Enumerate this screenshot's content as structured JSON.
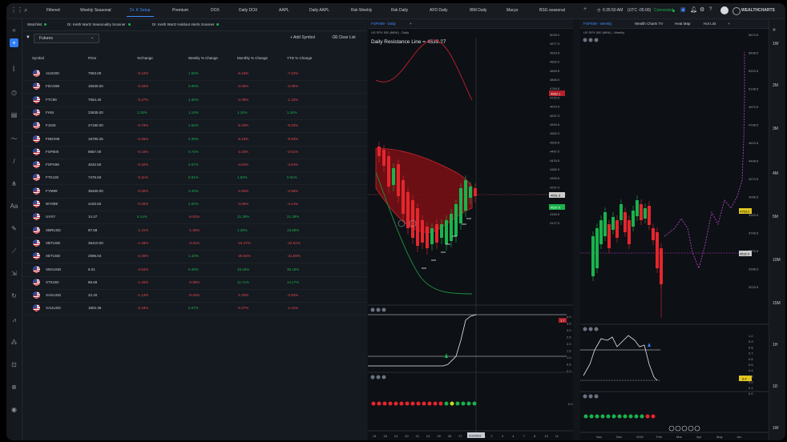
{
  "colors": {
    "accent": "#3d8bfd",
    "up": "#19b34c",
    "down": "#e5484d",
    "connected": "#19b34c"
  },
  "topbar": {
    "tabs": [
      "Filtered",
      "Weekly Seasonal",
      "Dr. K Setup",
      "Premium",
      "DOX",
      "Daily DOX",
      "AAPL",
      "Daily AAPL",
      "Rsk Weekly",
      "Rsk Daily",
      "AFD Daily",
      "IBM Daily",
      "Macys",
      "BSG seasonal"
    ],
    "active_tab": "Dr. K Setup",
    "time": "6:35:50 AM",
    "timezone": "(UTC -05:00)",
    "status": "Connected",
    "brand": "WEALTHCHARTS"
  },
  "watchlist": {
    "tabs": [
      "Watchlist",
      "Dr. Keith Wurtz Seasonality Scanner",
      "Dr. Keith Wurtz Holdout Alerts Scanner"
    ],
    "selector": "Futures",
    "add_symbol": "Add Symbol",
    "clear_list": "Clear List",
    "columns": [
      "Symbol",
      "Price",
      "%Change",
      "Weekly % Change",
      "Monthly % Change",
      "YTD % Change"
    ],
    "rows": [
      {
        "symbol": "AUS200",
        "price": "7063.00",
        "chg": "-0.12%",
        "wk": "1.52%",
        "mo": "-6.16%",
        "ytd": "-7.23%",
        "signs": [
          "neg",
          "pos",
          "neg",
          "neg"
        ]
      },
      {
        "symbol": "FDAX99",
        "price": "15530.00",
        "chg": "-0.33%",
        "wk": "0.99%",
        "mo": "-3.55%",
        "ytd": "-2.05%",
        "signs": [
          "neg",
          "pos",
          "neg",
          "neg"
        ]
      },
      {
        "symbol": "FTC99",
        "price": "7064.40",
        "chg": "-0.27%",
        "wk": "1.36%",
        "mo": "-2.09%",
        "ytd": "-1.16%",
        "signs": [
          "neg",
          "pos",
          "neg",
          "neg"
        ]
      },
      {
        "symbol": "FHSI",
        "price": "23635.00",
        "chg": "1.19%",
        "wk": "1.14%",
        "mo": "1.34%",
        "ytd": "1.34%",
        "signs": [
          "pos",
          "pos",
          "pos",
          "pos"
        ]
      },
      {
        "symbol": "FJ225",
        "price": "27190.00",
        "chg": "-0.79%",
        "wk": "1.52%",
        "mo": "-5.33%",
        "ytd": "-5.03%",
        "signs": [
          "neg",
          "pos",
          "neg",
          "neg"
        ]
      },
      {
        "symbol": "FNDX99",
        "price": "16790.25",
        "chg": "-0.36%",
        "wk": "2.39%",
        "mo": "-6.19%",
        "ytd": "-9.93%",
        "signs": [
          "neg",
          "pos",
          "neg",
          "neg"
        ]
      },
      {
        "symbol": "FSP500",
        "price": "8567.00",
        "chg": "-0.10%",
        "wk": "0.74%",
        "mo": "-1.03%",
        "ytd": "-0.51%",
        "signs": [
          "neg",
          "pos",
          "neg",
          "neg"
        ]
      },
      {
        "symbol": "FSPX99",
        "price": "4532.50",
        "chg": "-0.32%",
        "wk": "2.07%",
        "mo": "-4.84%",
        "ytd": "-4.64%",
        "signs": [
          "neg",
          "pos",
          "neg",
          "neg"
        ]
      },
      {
        "symbol": "FTK100",
        "price": "7475.50",
        "chg": "-0.11%",
        "wk": "0.81%",
        "mo": "1.83%",
        "ytd": "0.91%",
        "signs": [
          "neg",
          "pos",
          "pos",
          "pos"
        ]
      },
      {
        "symbol": "FYM99",
        "price": "35460.00",
        "chg": "-0.30%",
        "wk": "2.40%",
        "mo": "-2.56%",
        "ytd": "-2.56%",
        "signs": [
          "neg",
          "pos",
          "neg",
          "neg"
        ]
      },
      {
        "symbol": "NIY099",
        "price": "4183.50",
        "chg": "-0.35%",
        "wk": "2.02%",
        "mo": "-3.06%",
        "ytd": "-4.14%",
        "signs": [
          "neg",
          "pos",
          "neg",
          "neg"
        ]
      },
      {
        "symbol": "UVXY",
        "price": "14.47",
        "chg": "6.14%",
        "wk": "-6.91%",
        "mo": "21.39%",
        "ytd": "21.39%",
        "signs": [
          "pos",
          "neg",
          "pos",
          "pos"
        ]
      },
      {
        "symbol": "XBRUSD",
        "price": "87.68",
        "chg": "-1.41%",
        "wk": "-1.36%",
        "mo": "1.30%",
        "ytd": "13.69%",
        "signs": [
          "neg",
          "neg",
          "pos",
          "pos"
        ]
      },
      {
        "symbol": "XBTUSD",
        "price": "36410.00",
        "chg": "-1.48%",
        "wk": "-0.31%",
        "mo": "-16.47%",
        "ytd": "-22.51%",
        "signs": [
          "neg",
          "neg",
          "neg",
          "neg"
        ]
      },
      {
        "symbol": "XETUSD",
        "price": "2596.04",
        "chg": "-2.36%",
        "wk": "1.43%",
        "mo": "-26.93%",
        "ytd": "-31.59%",
        "signs": [
          "neg",
          "pos",
          "neg",
          "neg"
        ]
      },
      {
        "symbol": "XNGUSD",
        "price": "5.01",
        "chg": "-3.84%",
        "wk": "0.49%",
        "mo": "33.16%",
        "ytd": "35.18%",
        "signs": [
          "neg",
          "pos",
          "pos",
          "pos"
        ]
      },
      {
        "symbol": "XTIUSD",
        "price": "86.69",
        "chg": "-1.45%",
        "wk": "-0.95%",
        "mo": "11.71%",
        "ytd": "14.17%",
        "signs": [
          "neg",
          "neg",
          "pos",
          "pos"
        ]
      },
      {
        "symbol": "XAGUSD",
        "price": "22.40",
        "chg": "-1.13%",
        "wk": "-0.34%",
        "mo": "-1.03%",
        "ytd": "-3.92%",
        "signs": [
          "neg",
          "neg",
          "neg",
          "neg"
        ]
      },
      {
        "symbol": "XAUUSD",
        "price": "1802.36",
        "chg": "-0.19%",
        "wk": "0.07%",
        "mo": "-0.37%",
        "ytd": "-1.41%",
        "signs": [
          "neg",
          "pos",
          "neg",
          "neg"
        ]
      }
    ]
  },
  "chart1": {
    "tabs": [
      "FSPX99 - Daily",
      "+"
    ],
    "header": "US SPX 500 (MINI) - Daily",
    "resistance": "Daily Resistance Line = 4539.27",
    "price_labels": [
      "5033.0",
      "4977.0",
      "4934.5",
      "4892.0",
      "4849.5",
      "4806.0",
      "4764.5",
      "4722.0",
      "4679.5",
      "4637.0",
      "4594.5",
      "4552.0",
      "4509.5",
      "4467.0",
      "4424.5",
      "4382.0",
      "4339.5",
      "4297.0",
      "4254.5",
      "4212.0",
      "4169.5",
      "4127.0"
    ],
    "tags": {
      "red_top": "4962.1",
      "white_mid": "4551.5",
      "green_mid": "4537.0"
    },
    "ind1_labels": [
      "4.0",
      "3.5",
      "3.0",
      "2.5",
      "2.0",
      "1.5",
      "1.0",
      "0.5",
      "0.0"
    ],
    "ind1_tag": "1.7",
    "ind2_tag": "0.0",
    "date_labels": [
      "14",
      "18",
      "19",
      "20",
      "21",
      "24",
      "25",
      "26",
      "27",
      "28",
      "Feb",
      "2",
      "3",
      "4",
      "7",
      "8",
      "10",
      "11"
    ],
    "date_tag": "2/2/2022"
  },
  "chart2": {
    "tabs": [
      "FSPX99 - Weekly",
      "Wealth Charts TV",
      "Heat Map",
      "Hot List",
      "+"
    ],
    "header": "US SPX 500 (MINI) - Weekly",
    "price_labels": [
      "5673.5",
      "5498.5",
      "5323.5",
      "5148.5",
      "4973.5",
      "4798.5",
      "4623.5",
      "4448.5",
      "4273.5",
      "4098.5",
      "3923.5",
      "3748.5",
      "3573.5",
      "3398.5",
      "3223.5"
    ],
    "tags": {
      "yellow": "4753.0",
      "white": "4532.0"
    },
    "ind_labels": [
      "1.0",
      "0.9",
      "0.8",
      "0.7",
      "0.6",
      "0.5",
      "0.4",
      "0.3",
      "0.2",
      "0.1",
      "0.0"
    ],
    "ind_tag": "0.4",
    "date_labels": [
      "Nov",
      "Dec",
      "2022",
      "Feb",
      "Mar",
      "Apr",
      "May",
      "Jun"
    ]
  },
  "rrail": {
    "labels": [
      "1W",
      "2M",
      "3M",
      "4M",
      "5M",
      "10M",
      "15M",
      "1H",
      "1D",
      "1W"
    ]
  }
}
